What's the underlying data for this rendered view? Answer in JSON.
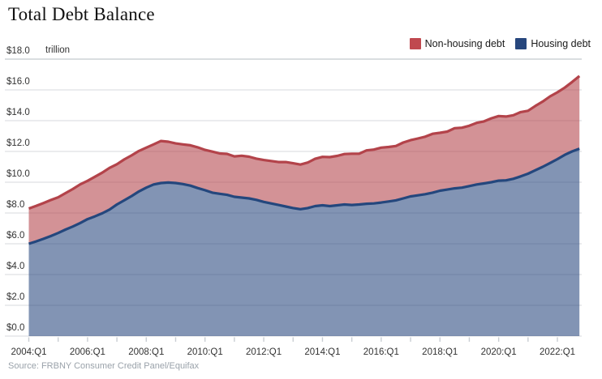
{
  "title": "Total Debt Balance",
  "source_note": "Source: FRBNY Consumer Credit Panel/Equifax",
  "legend": [
    {
      "label": "Non-housing debt",
      "color": "#c0494f"
    },
    {
      "label": "Housing debt",
      "color": "#27477d"
    }
  ],
  "chart_data": {
    "type": "area",
    "stacked": true,
    "title": "Total Debt Balance",
    "unit_label": "trillion",
    "ylabel": "$ trillion",
    "ylim": [
      0,
      18
    ],
    "y_tick_step": 2,
    "y_tick_labels_bottom_up": [
      "$0.0",
      "$2.0",
      "$4.0",
      "$6.0",
      "$8.0",
      "$10.0",
      "$12.0",
      "$14.0",
      "$16.0",
      "$18.0"
    ],
    "x_start": "2004:Q1",
    "x_end": "2022:Q4",
    "points_per_year": 4,
    "x_tick_labels": [
      "2004:Q1",
      "2006:Q1",
      "2008:Q1",
      "2010:Q1",
      "2012:Q1",
      "2014:Q1",
      "2016:Q1",
      "2018:Q1",
      "2020:Q1",
      "2022:Q1"
    ],
    "x_tick_label_interval_quarters": 8,
    "grid": true,
    "legend_position": "top-right",
    "series": [
      {
        "name": "Housing debt",
        "stroke": "#24477d",
        "fill": "rgba(39,71,125,0.58)",
        "values": [
          6.0,
          6.15,
          6.32,
          6.5,
          6.7,
          6.92,
          7.12,
          7.35,
          7.6,
          7.78,
          7.98,
          8.22,
          8.55,
          8.82,
          9.1,
          9.4,
          9.65,
          9.85,
          9.95,
          9.98,
          9.95,
          9.88,
          9.78,
          9.62,
          9.48,
          9.32,
          9.25,
          9.18,
          9.05,
          9.0,
          8.95,
          8.85,
          8.72,
          8.62,
          8.52,
          8.42,
          8.32,
          8.25,
          8.32,
          8.45,
          8.5,
          8.45,
          8.5,
          8.55,
          8.52,
          8.55,
          8.6,
          8.62,
          8.68,
          8.75,
          8.82,
          8.95,
          9.08,
          9.15,
          9.22,
          9.32,
          9.45,
          9.52,
          9.6,
          9.65,
          9.75,
          9.85,
          9.92,
          10.0,
          10.1,
          10.12,
          10.22,
          10.38,
          10.55,
          10.78,
          11.0,
          11.25,
          11.5,
          11.78,
          12.0,
          12.18
        ]
      },
      {
        "name": "Non-housing debt",
        "stroke": "#b3434a",
        "fill": "rgba(179,67,74,0.58)",
        "values": [
          2.29,
          2.31,
          2.33,
          2.34,
          2.32,
          2.37,
          2.44,
          2.51,
          2.49,
          2.57,
          2.64,
          2.71,
          2.62,
          2.66,
          2.64,
          2.63,
          2.6,
          2.61,
          2.73,
          2.65,
          2.57,
          2.58,
          2.62,
          2.65,
          2.62,
          2.67,
          2.62,
          2.66,
          2.63,
          2.72,
          2.71,
          2.68,
          2.72,
          2.76,
          2.79,
          2.89,
          2.91,
          2.9,
          2.96,
          3.07,
          3.15,
          3.18,
          3.21,
          3.28,
          3.33,
          3.3,
          3.47,
          3.5,
          3.57,
          3.54,
          3.53,
          3.63,
          3.65,
          3.69,
          3.74,
          3.83,
          3.76,
          3.77,
          3.91,
          3.89,
          3.92,
          4.01,
          4.03,
          4.15,
          4.2,
          4.15,
          4.13,
          4.18,
          4.09,
          4.18,
          4.24,
          4.33,
          4.34,
          4.37,
          4.51,
          4.72
        ]
      }
    ],
    "total_at_end": 16.9,
    "housing_at_end": 12.18
  }
}
